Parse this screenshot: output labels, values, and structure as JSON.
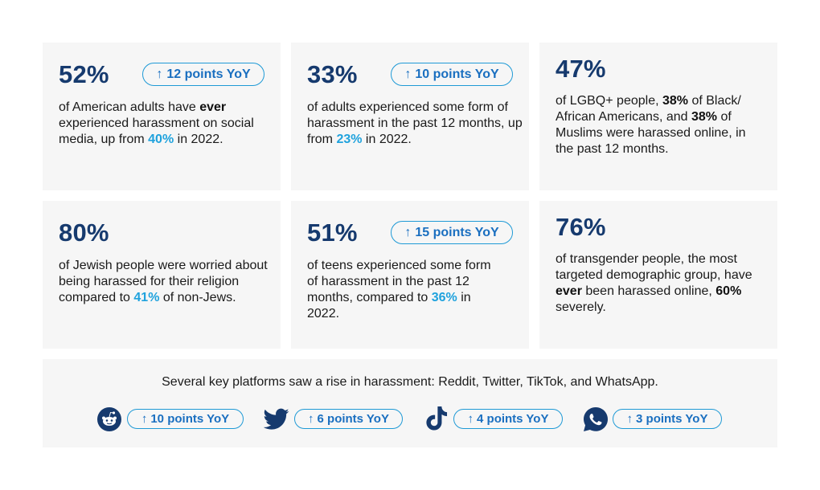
{
  "cards": [
    {
      "stat": "52%",
      "badge": "12 points YoY",
      "desc": [
        "of American adults have ",
        {
          "b": "ever"
        },
        " experienced harassment on social media, up from ",
        {
          "hl": "40%"
        },
        " in 2022."
      ]
    },
    {
      "stat": "33%",
      "badge": "10 points YoY",
      "desc": [
        "of adults experienced some form of harassment in the past 12 months, up from ",
        {
          "hl": "23%"
        },
        " in 2022."
      ]
    },
    {
      "stat": "47%",
      "badge": null,
      "desc": [
        "of LGBQ+ people, ",
        {
          "b": "38%"
        },
        " of Black/ African Americans, and ",
        {
          "b": "38%"
        },
        " of Muslims were harassed online, in the past 12 months."
      ]
    },
    {
      "stat": "80%",
      "badge": null,
      "desc": [
        "of Jewish people were worried about being harassed for their religion compared to ",
        {
          "hl": "41%"
        },
        " of non-Jews."
      ]
    },
    {
      "stat": "51%",
      "badge": "15 points YoY",
      "desc": [
        "of teens experienced some form of harassment in the past 12 months, compared to ",
        {
          "hl": "36%"
        },
        " in 2022."
      ]
    },
    {
      "stat": "76%",
      "badge": null,
      "desc": [
        "of transgender people, the most targeted demographic group, have ",
        {
          "b": "ever"
        },
        " been harassed online, ",
        {
          "b": "60%"
        },
        " severely."
      ]
    }
  ],
  "footer": {
    "text": "Several key platforms saw a rise in harassment: Reddit, Twitter, TikTok, and WhatsApp.",
    "platforms": [
      {
        "icon": "reddit-icon",
        "badge": "10 points YoY"
      },
      {
        "icon": "twitter-icon",
        "badge": "6 points YoY"
      },
      {
        "icon": "tiktok-icon",
        "badge": "4 points YoY"
      },
      {
        "icon": "whatsapp-icon",
        "badge": "3 points YoY"
      }
    ]
  },
  "colors": {
    "stat": "#163a6e",
    "accent": "#1fa2dd",
    "card_bg": "#f6f6f6"
  }
}
